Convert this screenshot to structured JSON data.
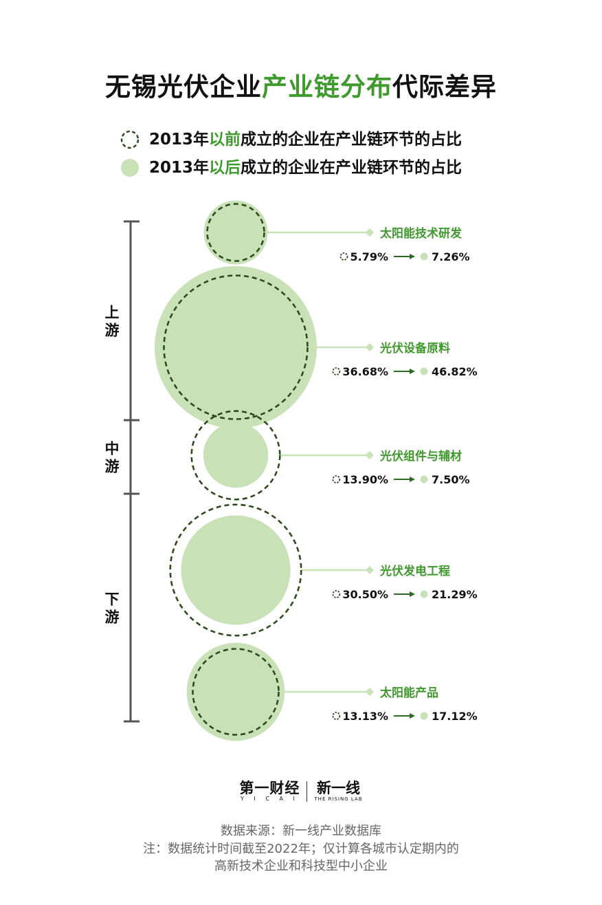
{
  "title": {
    "part1": "无锡光伏企业",
    "highlight": "产业链分布",
    "part2": "代际差异"
  },
  "legend": {
    "before": {
      "pre": "2013年",
      "hl": "以前",
      "post": "成立的企业在产业链环节的占比"
    },
    "after": {
      "pre": "2013年",
      "hl": "以后",
      "post": "成立的企业在产业链环节的占比"
    }
  },
  "colors": {
    "accent": "#3f9a2d",
    "fill": "#c8e1b6",
    "dashed": "#2d4a1e",
    "bracket": "#555555",
    "connector": "#c8e1b6"
  },
  "chart_data": {
    "type": "bubble",
    "series": [
      {
        "values": [
          5.79,
          36.68,
          13.9,
          30.5,
          13.13
        ]
      },
      {
        "values": [
          7.26,
          46.82,
          7.5,
          21.29,
          17.12
        ]
      }
    ],
    "segments": [
      "上游",
      "中游",
      "下游"
    ],
    "items": [
      {
        "segment": "上游",
        "name": "太阳能技术研发",
        "before": 5.79,
        "after": 7.26,
        "before_label": "5.79%",
        "after_label": "7.26%"
      },
      {
        "segment": "上游",
        "name": "光伏设备原料",
        "before": 36.68,
        "after": 46.82,
        "before_label": "36.68%",
        "after_label": "46.82%"
      },
      {
        "segment": "中游",
        "name": "光伏组件与辅材",
        "before": 13.9,
        "after": 7.5,
        "before_label": "13.90%",
        "after_label": "7.50%"
      },
      {
        "segment": "下游",
        "name": "光伏发电工程",
        "before": 30.5,
        "after": 21.29,
        "before_label": "30.50%",
        "after_label": "21.29%"
      },
      {
        "segment": "下游",
        "name": "太阳能产品",
        "before": 13.13,
        "after": 17.12,
        "before_label": "13.13%",
        "after_label": "17.12%"
      }
    ]
  },
  "logos": {
    "yicai_cn": "第一财经",
    "yicai_en": "Y I C A I",
    "rising_cn": "新一线",
    "rising_en": "THE RISING LAB"
  },
  "footer": {
    "line1": "数据来源：新一线产业数据库",
    "line2": "注：数据统计时间截至2022年；仅计算各城市认定期内的",
    "line3": "高新技术企业和科技型中小企业"
  }
}
